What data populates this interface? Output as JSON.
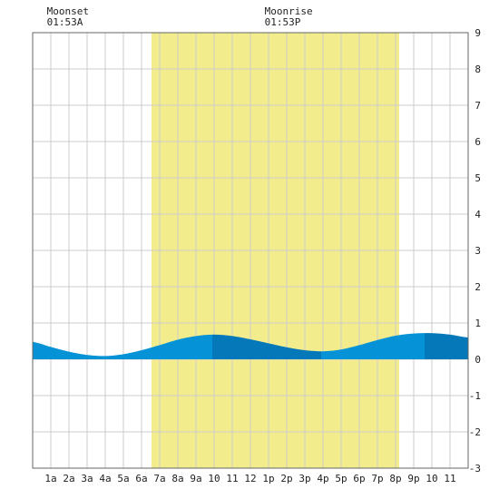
{
  "chart_data": {
    "type": "area",
    "title": "",
    "xlabel": "",
    "ylabel": "",
    "x_range_hours": [
      0,
      24
    ],
    "ylim": [
      -3,
      9
    ],
    "grid": true,
    "x_tick_labels": [
      "1a",
      "2a",
      "3a",
      "4a",
      "5a",
      "6a",
      "7a",
      "8a",
      "9a",
      "10",
      "11",
      "12",
      "1p",
      "2p",
      "3p",
      "4p",
      "5p",
      "6p",
      "7p",
      "8p",
      "9p",
      "10",
      "11"
    ],
    "x_tick_hours": [
      1,
      2,
      3,
      4,
      5,
      6,
      7,
      8,
      9,
      10,
      11,
      12,
      13,
      14,
      15,
      16,
      17,
      18,
      19,
      20,
      21,
      22,
      23
    ],
    "y_ticks": [
      -3,
      -2,
      -1,
      0,
      1,
      2,
      3,
      4,
      5,
      6,
      7,
      8,
      9
    ],
    "y_tick_labels": [
      "-3",
      "-2",
      "-1",
      "0",
      "1",
      "2",
      "3",
      "4",
      "5",
      "6",
      "7",
      "8",
      "9"
    ],
    "daylight_hours": [
      6.55,
      20.2
    ],
    "moon_events": [
      {
        "label": "Moonset",
        "time": "01:53A",
        "hour": 1.88
      },
      {
        "label": "Moonrise",
        "time": "01:53P",
        "hour": 13.88
      }
    ],
    "tide_series": {
      "hours": [
        0,
        1,
        2,
        3,
        4,
        5,
        6,
        7,
        8,
        9,
        10,
        11,
        12,
        13,
        14,
        15,
        16,
        17,
        18,
        19,
        20,
        21,
        22,
        23,
        24
      ],
      "heights": [
        0.48,
        0.34,
        0.21,
        0.12,
        0.09,
        0.14,
        0.25,
        0.39,
        0.54,
        0.64,
        0.68,
        0.64,
        0.55,
        0.44,
        0.33,
        0.25,
        0.22,
        0.27,
        0.39,
        0.53,
        0.65,
        0.71,
        0.72,
        0.68,
        0.6
      ]
    },
    "colors": {
      "grid": "#cccccc",
      "frame": "#666666",
      "daylight": "#f3ec8d",
      "tide_light": "#0592d6",
      "tide_dark": "#0478b8"
    }
  }
}
